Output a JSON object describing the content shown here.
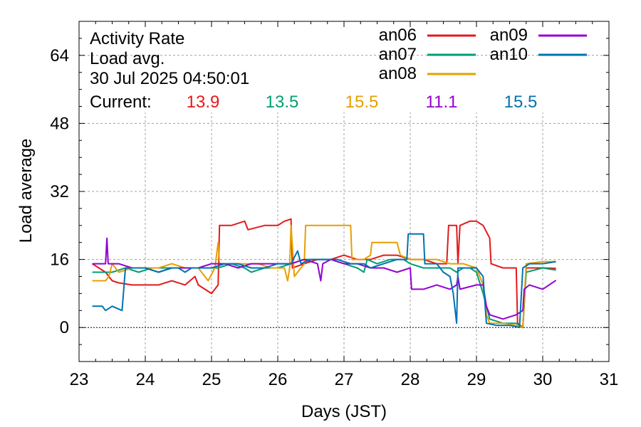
{
  "chart_data": {
    "type": "line",
    "title": "Activity Rate",
    "subtitle": "Load avg.",
    "timestamp": "30 Jul 2025 04:50:01",
    "xlabel": "Days (JST)",
    "ylabel": "Load average",
    "xlim": [
      23,
      31
    ],
    "ylim": [
      -8,
      72
    ],
    "xticks": [
      23,
      24,
      25,
      26,
      27,
      28,
      29,
      30,
      31
    ],
    "yticks": [
      0,
      16,
      32,
      48,
      64
    ],
    "grid": true,
    "legend_position": "top-right",
    "current_label": "Current:",
    "series": [
      {
        "name": "an06",
        "color": "#e41a1c",
        "current": "13.9",
        "points": [
          [
            23.2,
            15
          ],
          [
            23.4,
            13
          ],
          [
            23.5,
            11
          ],
          [
            23.6,
            10.5
          ],
          [
            23.8,
            10
          ],
          [
            24.0,
            10
          ],
          [
            24.2,
            10
          ],
          [
            24.4,
            11
          ],
          [
            24.6,
            10
          ],
          [
            24.75,
            12
          ],
          [
            24.8,
            10
          ],
          [
            24.9,
            9
          ],
          [
            25.0,
            8
          ],
          [
            25.1,
            10
          ],
          [
            25.12,
            24
          ],
          [
            25.3,
            24
          ],
          [
            25.5,
            25
          ],
          [
            25.55,
            23
          ],
          [
            25.8,
            24
          ],
          [
            26.0,
            24
          ],
          [
            26.1,
            25
          ],
          [
            26.2,
            25.5
          ],
          [
            26.22,
            14
          ],
          [
            26.4,
            15
          ],
          [
            26.6,
            16
          ],
          [
            26.8,
            16
          ],
          [
            27.0,
            17
          ],
          [
            27.2,
            16
          ],
          [
            27.4,
            16
          ],
          [
            27.6,
            17
          ],
          [
            27.8,
            17
          ],
          [
            28.0,
            16
          ],
          [
            28.2,
            16
          ],
          [
            28.4,
            15
          ],
          [
            28.55,
            15
          ],
          [
            28.58,
            24
          ],
          [
            28.7,
            24
          ],
          [
            28.72,
            15
          ],
          [
            28.75,
            24
          ],
          [
            28.9,
            25
          ],
          [
            29.0,
            25
          ],
          [
            29.1,
            24
          ],
          [
            29.2,
            21
          ],
          [
            29.22,
            15
          ],
          [
            29.4,
            14
          ],
          [
            29.6,
            14
          ],
          [
            29.62,
            1
          ],
          [
            29.7,
            0
          ],
          [
            29.75,
            14
          ],
          [
            30.0,
            14
          ],
          [
            30.2,
            13.9
          ]
        ]
      },
      {
        "name": "an07",
        "color": "#009e73",
        "current": "13.5",
        "points": [
          [
            23.2,
            13
          ],
          [
            23.4,
            13
          ],
          [
            23.5,
            13
          ],
          [
            23.7,
            14
          ],
          [
            23.9,
            13
          ],
          [
            24.1,
            14
          ],
          [
            24.3,
            14
          ],
          [
            24.5,
            14
          ],
          [
            24.7,
            14
          ],
          [
            24.9,
            14
          ],
          [
            25.1,
            14
          ],
          [
            25.3,
            15
          ],
          [
            25.5,
            14
          ],
          [
            25.6,
            13
          ],
          [
            25.8,
            14
          ],
          [
            26.0,
            14
          ],
          [
            26.2,
            15
          ],
          [
            26.4,
            16
          ],
          [
            26.6,
            16
          ],
          [
            26.8,
            16
          ],
          [
            27.0,
            15
          ],
          [
            27.2,
            14
          ],
          [
            27.3,
            13
          ],
          [
            27.35,
            16
          ],
          [
            27.5,
            15
          ],
          [
            27.7,
            16
          ],
          [
            27.9,
            16
          ],
          [
            28.0,
            15
          ],
          [
            28.2,
            14
          ],
          [
            28.4,
            14
          ],
          [
            28.6,
            14
          ],
          [
            28.7,
            13
          ],
          [
            28.8,
            14
          ],
          [
            28.9,
            14
          ],
          [
            29.0,
            13
          ],
          [
            29.1,
            8
          ],
          [
            29.2,
            2
          ],
          [
            29.4,
            1
          ],
          [
            29.6,
            1
          ],
          [
            29.7,
            0
          ],
          [
            29.75,
            13
          ],
          [
            30.0,
            14
          ],
          [
            30.2,
            13.5
          ]
        ]
      },
      {
        "name": "an08",
        "color": "#e69f00",
        "current": "15.5",
        "points": [
          [
            23.2,
            11
          ],
          [
            23.4,
            11
          ],
          [
            23.45,
            12
          ],
          [
            23.5,
            15
          ],
          [
            23.6,
            13
          ],
          [
            23.8,
            14
          ],
          [
            24.0,
            14
          ],
          [
            24.2,
            14
          ],
          [
            24.4,
            15
          ],
          [
            24.6,
            14
          ],
          [
            24.8,
            14
          ],
          [
            24.95,
            11
          ],
          [
            25.05,
            14
          ],
          [
            25.1,
            20
          ],
          [
            25.12,
            15
          ],
          [
            25.3,
            15
          ],
          [
            25.5,
            15
          ],
          [
            25.7,
            15
          ],
          [
            25.9,
            14
          ],
          [
            26.1,
            14
          ],
          [
            26.15,
            11
          ],
          [
            26.18,
            14
          ],
          [
            26.2,
            24
          ],
          [
            26.25,
            12
          ],
          [
            26.3,
            13
          ],
          [
            26.4,
            15
          ],
          [
            26.42,
            24
          ],
          [
            26.6,
            24
          ],
          [
            26.8,
            24
          ],
          [
            27.0,
            24
          ],
          [
            27.1,
            24
          ],
          [
            27.12,
            16
          ],
          [
            27.3,
            16
          ],
          [
            27.4,
            17
          ],
          [
            27.42,
            20
          ],
          [
            27.6,
            20
          ],
          [
            27.8,
            20
          ],
          [
            27.85,
            17
          ],
          [
            28.0,
            16
          ],
          [
            28.2,
            16
          ],
          [
            28.4,
            16
          ],
          [
            28.6,
            15
          ],
          [
            28.8,
            15
          ],
          [
            29.0,
            14
          ],
          [
            29.1,
            10
          ],
          [
            29.15,
            3
          ],
          [
            29.2,
            1
          ],
          [
            29.4,
            1
          ],
          [
            29.6,
            0.5
          ],
          [
            29.7,
            0
          ],
          [
            29.75,
            15
          ],
          [
            30.0,
            15.5
          ],
          [
            30.2,
            15.5
          ]
        ]
      },
      {
        "name": "an09",
        "color": "#9400d3",
        "current": "11.1",
        "points": [
          [
            23.2,
            15
          ],
          [
            23.4,
            15
          ],
          [
            23.42,
            21
          ],
          [
            23.44,
            15
          ],
          [
            23.6,
            15
          ],
          [
            23.8,
            14
          ],
          [
            24.0,
            14
          ],
          [
            24.2,
            13
          ],
          [
            24.4,
            14
          ],
          [
            24.6,
            14
          ],
          [
            24.8,
            14
          ],
          [
            25.0,
            15
          ],
          [
            25.2,
            15
          ],
          [
            25.4,
            14
          ],
          [
            25.6,
            15
          ],
          [
            25.8,
            15
          ],
          [
            26.0,
            15
          ],
          [
            26.2,
            15
          ],
          [
            26.4,
            16
          ],
          [
            26.6,
            15
          ],
          [
            26.65,
            11
          ],
          [
            26.68,
            15
          ],
          [
            26.8,
            16
          ],
          [
            27.0,
            15
          ],
          [
            27.2,
            15
          ],
          [
            27.4,
            14
          ],
          [
            27.6,
            14
          ],
          [
            27.8,
            13
          ],
          [
            28.0,
            14
          ],
          [
            28.02,
            9
          ],
          [
            28.2,
            9
          ],
          [
            28.4,
            10
          ],
          [
            28.6,
            9
          ],
          [
            28.7,
            10
          ],
          [
            28.72,
            12
          ],
          [
            28.75,
            9
          ],
          [
            29.0,
            10
          ],
          [
            29.1,
            10
          ],
          [
            29.15,
            5
          ],
          [
            29.2,
            3
          ],
          [
            29.4,
            2
          ],
          [
            29.6,
            3
          ],
          [
            29.7,
            4
          ],
          [
            29.72,
            9
          ],
          [
            29.8,
            10
          ],
          [
            30.0,
            9
          ],
          [
            30.2,
            11.1
          ]
        ]
      },
      {
        "name": "an10",
        "color": "#0072b2",
        "current": "15.5",
        "points": [
          [
            23.2,
            5
          ],
          [
            23.35,
            5
          ],
          [
            23.4,
            4
          ],
          [
            23.5,
            5
          ],
          [
            23.65,
            4
          ],
          [
            23.7,
            14
          ],
          [
            23.9,
            14
          ],
          [
            24.0,
            14
          ],
          [
            24.2,
            13
          ],
          [
            24.4,
            14
          ],
          [
            24.5,
            14
          ],
          [
            24.6,
            13
          ],
          [
            24.7,
            14
          ],
          [
            24.8,
            14
          ],
          [
            24.9,
            14
          ],
          [
            25.0,
            14
          ],
          [
            25.2,
            15
          ],
          [
            25.4,
            15
          ],
          [
            25.6,
            14
          ],
          [
            25.8,
            14
          ],
          [
            26.0,
            15
          ],
          [
            26.2,
            15
          ],
          [
            26.3,
            18
          ],
          [
            26.35,
            15
          ],
          [
            26.5,
            16
          ],
          [
            26.7,
            16
          ],
          [
            26.9,
            16
          ],
          [
            27.1,
            15
          ],
          [
            27.3,
            15
          ],
          [
            27.4,
            14
          ],
          [
            27.6,
            15
          ],
          [
            27.8,
            16
          ],
          [
            27.95,
            16
          ],
          [
            27.97,
            22
          ],
          [
            28.1,
            22
          ],
          [
            28.2,
            22
          ],
          [
            28.22,
            15
          ],
          [
            28.4,
            15
          ],
          [
            28.5,
            13
          ],
          [
            28.6,
            12
          ],
          [
            28.65,
            8
          ],
          [
            28.7,
            1
          ],
          [
            28.72,
            14
          ],
          [
            28.9,
            14
          ],
          [
            29.0,
            14
          ],
          [
            29.1,
            12
          ],
          [
            29.15,
            1
          ],
          [
            29.3,
            0.5
          ],
          [
            29.5,
            0.5
          ],
          [
            29.65,
            0
          ],
          [
            29.7,
            14
          ],
          [
            29.8,
            15
          ],
          [
            30.0,
            15
          ],
          [
            30.2,
            15.5
          ]
        ]
      }
    ]
  }
}
